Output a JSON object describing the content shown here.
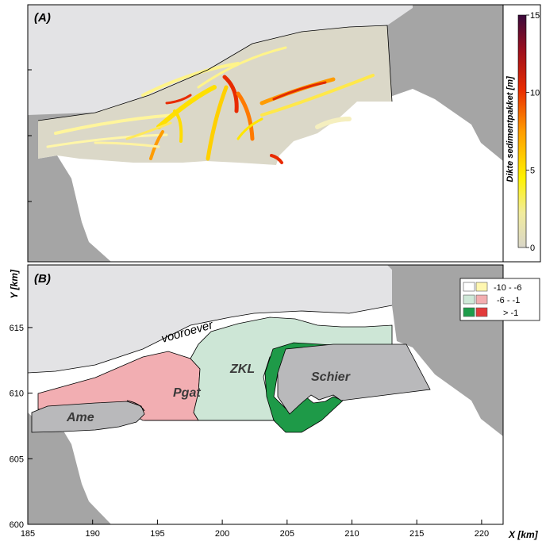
{
  "panel_a": {
    "label": "(A)",
    "colorbar": {
      "title": "Dikte sedimentpakket  [m]",
      "ticks": [
        "0",
        "5",
        "10",
        "15"
      ],
      "min": 0,
      "max": 15,
      "colors": [
        "#d9d6c8",
        "#f1ec9c",
        "#fff200",
        "#ff9c00",
        "#e82b00",
        "#9b0f1e",
        "#3a0a3c"
      ]
    }
  },
  "panel_b": {
    "label": "(B)",
    "areas": {
      "ame": "Ame",
      "pgat": "Pgat",
      "zkl": "ZKL",
      "schier": "Schier",
      "vooroever": "vooroever"
    },
    "legend": [
      {
        "label": "-10 - -6",
        "color_green": "#ffffff",
        "color_red": "#fff7b0"
      },
      {
        "label": "-6 - -1",
        "color_green": "#cfe9d8",
        "color_red": "#f3aeb0"
      },
      {
        "label": "> -1",
        "color_green": "#1e9c4a",
        "color_red": "#e23a3a"
      }
    ],
    "axes": {
      "xlabel": "X [km]",
      "ylabel": "Y [km]",
      "xticks": [
        "185",
        "190",
        "195",
        "200",
        "205",
        "210",
        "215",
        "220"
      ],
      "yticks": [
        "600",
        "605",
        "610",
        "615"
      ]
    }
  },
  "colors": {
    "land": "#a5a5a5",
    "sea": "#e3e3e5",
    "domain": "#ffffff",
    "pgat": "#f2aeb2",
    "zkl": "#cde6d6",
    "schier_green": "#1e9a48",
    "island": "#b9b9bb"
  }
}
